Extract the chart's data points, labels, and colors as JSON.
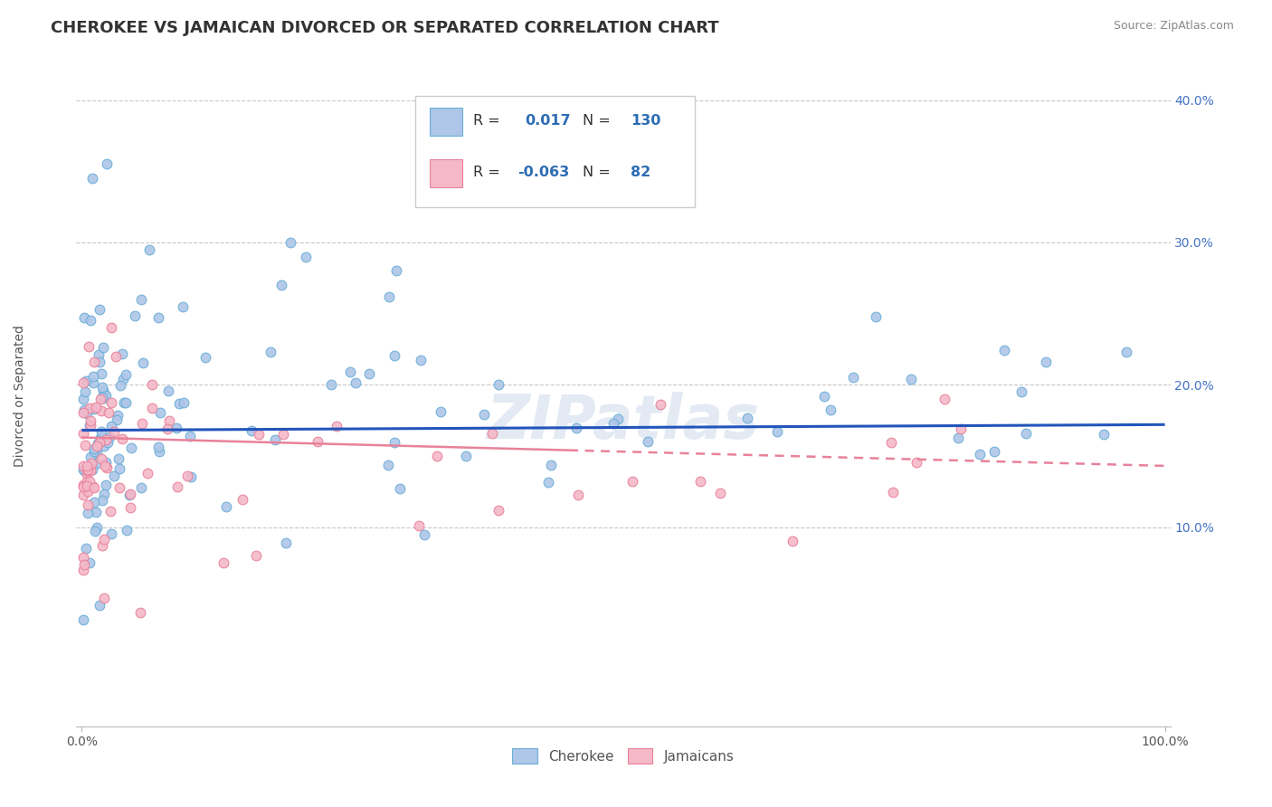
{
  "title": "CHEROKEE VS JAMAICAN DIVORCED OR SEPARATED CORRELATION CHART",
  "source_text": "Source: ZipAtlas.com",
  "xlim": [
    -0.005,
    1.005
  ],
  "ylim": [
    -0.04,
    0.425
  ],
  "cherokee_color": "#aec6e8",
  "cherokee_edge": "#6baed6",
  "jamaican_color": "#f4b8c8",
  "jamaican_edge": "#e8829a",
  "trendline_cherokee_color": "#2255bb",
  "trendline_jamaican_color": "#e8829a",
  "R_cherokee": 0.017,
  "N_cherokee": 130,
  "R_jamaican": -0.063,
  "N_jamaican": 82,
  "watermark": "ZIPatlas",
  "title_color": "#333333",
  "title_fontsize": 13,
  "background_color": "#ffffff",
  "grid_color": "#c8c8c8",
  "ylabel": "Divorced or Separated",
  "yticks": [
    0.1,
    0.2,
    0.3,
    0.4
  ],
  "ytick_labels": [
    "10.0%",
    "20.0%",
    "30.0%",
    "40.0%"
  ],
  "xtick_labels": [
    "0.0%",
    "100.0%"
  ],
  "xticks": [
    0.0,
    1.0
  ],
  "legend1_label": "Cherokee",
  "legend2_label": "Jamaicans",
  "scatter_size": 60,
  "scatter_lw": 0.8
}
